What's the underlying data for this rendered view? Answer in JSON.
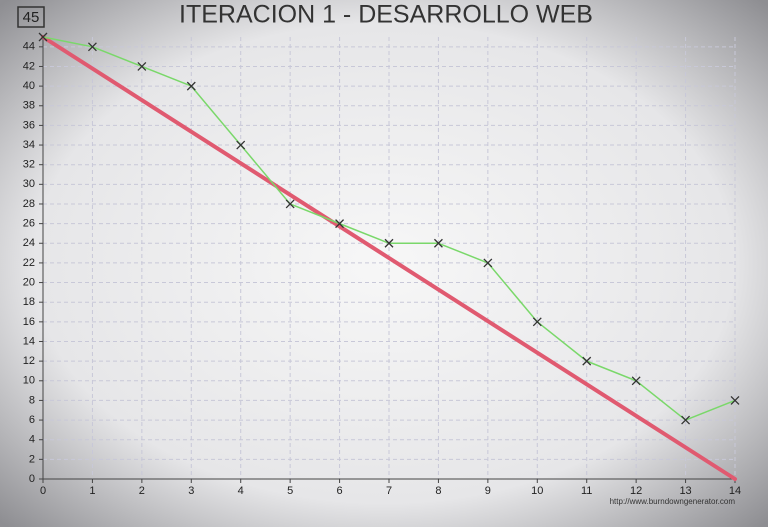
{
  "chart_data": {
    "type": "line",
    "title": "ITERACION 1 - DESARROLLO WEB",
    "start_value": 45,
    "source": "http://www.burndowngenerator.com",
    "xlim": [
      0,
      14
    ],
    "ylim": [
      0,
      45
    ],
    "xticks": [
      0,
      1,
      2,
      3,
      4,
      5,
      6,
      7,
      8,
      9,
      10,
      11,
      12,
      13,
      14
    ],
    "yticks": [
      0,
      2,
      4,
      6,
      8,
      10,
      12,
      14,
      16,
      18,
      20,
      22,
      24,
      26,
      28,
      30,
      32,
      34,
      36,
      38,
      40,
      42,
      44
    ],
    "grid": true,
    "series": [
      {
        "color": "#e05a70",
        "x": [
          0,
          14
        ],
        "values": [
          45,
          0
        ]
      },
      {
        "color": "#7ad86a",
        "x": [
          0,
          1,
          2,
          3,
          4,
          5,
          6,
          7,
          8,
          9,
          10,
          11,
          12,
          13,
          14
        ],
        "values": [
          45,
          44,
          42,
          40,
          34,
          28,
          26,
          24,
          24,
          22,
          16,
          12,
          10,
          6,
          8
        ]
      }
    ]
  }
}
